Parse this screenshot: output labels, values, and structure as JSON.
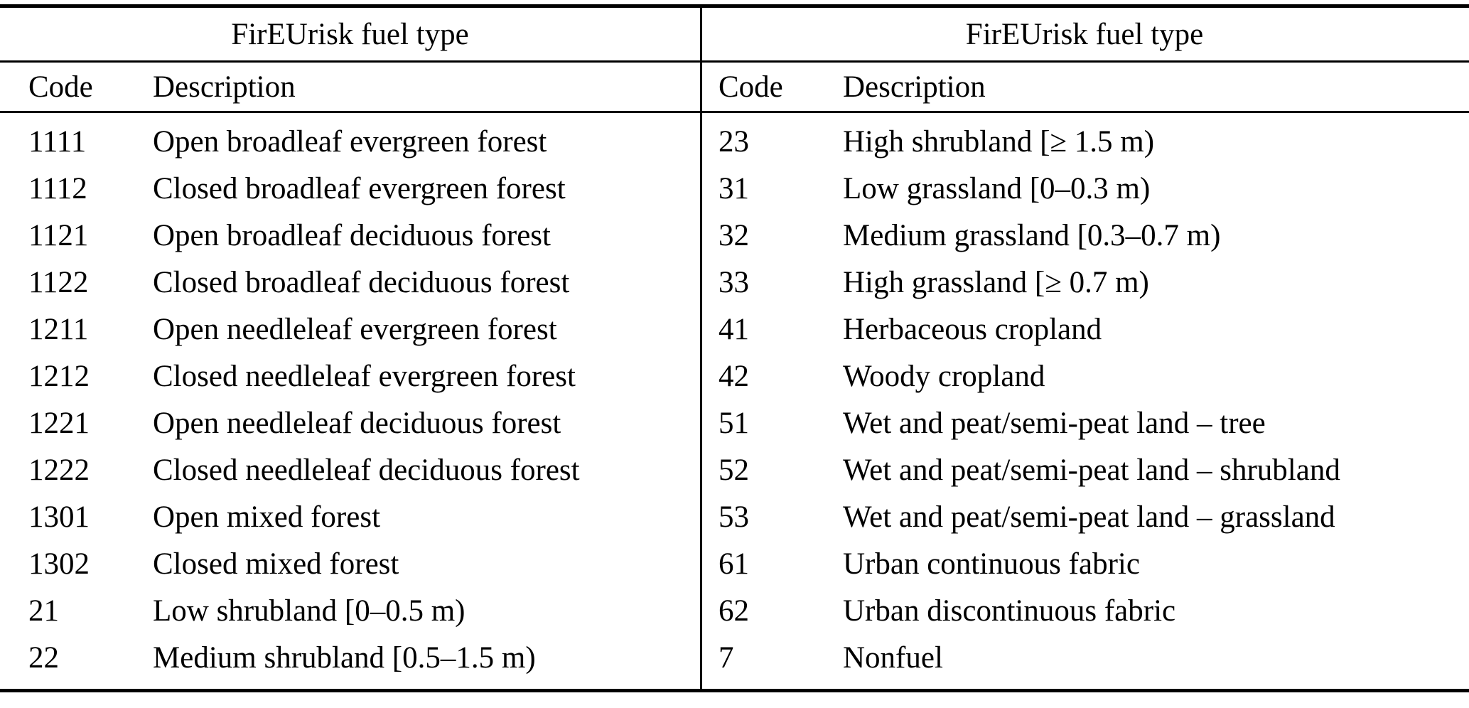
{
  "colors": {
    "text": "#000000",
    "background": "#ffffff",
    "rule": "#000000"
  },
  "tables": [
    {
      "group_header": "FirEUrisk fuel type",
      "columns": [
        "Code",
        "Description"
      ],
      "rows": [
        [
          "1111",
          "Open broadleaf evergreen forest"
        ],
        [
          "1112",
          "Closed broadleaf evergreen forest"
        ],
        [
          "1121",
          "Open broadleaf deciduous forest"
        ],
        [
          "1122",
          "Closed broadleaf deciduous forest"
        ],
        [
          "1211",
          "Open needleleaf evergreen forest"
        ],
        [
          "1212",
          "Closed needleleaf evergreen forest"
        ],
        [
          "1221",
          "Open needleleaf deciduous forest"
        ],
        [
          "1222",
          "Closed needleleaf deciduous forest"
        ],
        [
          "1301",
          "Open mixed forest"
        ],
        [
          "1302",
          "Closed mixed forest"
        ],
        [
          "21",
          "Low shrubland [0–0.5 m)"
        ],
        [
          "22",
          "Medium shrubland [0.5–1.5 m)"
        ]
      ]
    },
    {
      "group_header": "FirEUrisk fuel type",
      "columns": [
        "Code",
        "Description"
      ],
      "rows": [
        [
          "23",
          "High shrubland [≥ 1.5 m)"
        ],
        [
          "31",
          "Low grassland [0–0.3 m)"
        ],
        [
          "32",
          "Medium grassland [0.3–0.7 m)"
        ],
        [
          "33",
          "High grassland [≥ 0.7 m)"
        ],
        [
          "41",
          "Herbaceous cropland"
        ],
        [
          "42",
          "Woody cropland"
        ],
        [
          "51",
          "Wet and peat/semi-peat land – tree"
        ],
        [
          "52",
          "Wet and peat/semi-peat land – shrubland"
        ],
        [
          "53",
          "Wet and peat/semi-peat land – grassland"
        ],
        [
          "61",
          "Urban continuous fabric"
        ],
        [
          "62",
          "Urban discontinuous fabric"
        ],
        [
          "7",
          "Nonfuel"
        ]
      ]
    }
  ]
}
